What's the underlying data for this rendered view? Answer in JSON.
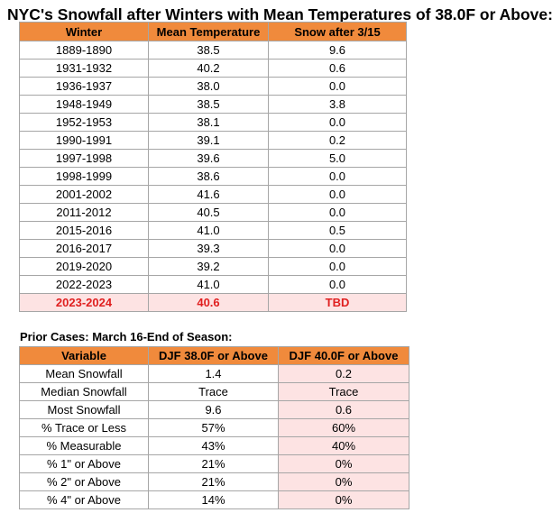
{
  "title": "NYC's Snowfall after Winters with Mean Temperatures of 38.0F or Above:",
  "winters_table": {
    "headers": [
      "Winter",
      "Mean Temperature",
      "Snow after 3/15"
    ],
    "rows": [
      [
        "1889-1890",
        "38.5",
        "9.6"
      ],
      [
        "1931-1932",
        "40.2",
        "0.6"
      ],
      [
        "1936-1937",
        "38.0",
        "0.0"
      ],
      [
        "1948-1949",
        "38.5",
        "3.8"
      ],
      [
        "1952-1953",
        "38.1",
        "0.0"
      ],
      [
        "1990-1991",
        "39.1",
        "0.2"
      ],
      [
        "1997-1998",
        "39.6",
        "5.0"
      ],
      [
        "1998-1999",
        "38.6",
        "0.0"
      ],
      [
        "2001-2002",
        "41.6",
        "0.0"
      ],
      [
        "2011-2012",
        "40.5",
        "0.0"
      ],
      [
        "2015-2016",
        "41.0",
        "0.5"
      ],
      [
        "2016-2017",
        "39.3",
        "0.0"
      ],
      [
        "2019-2020",
        "39.2",
        "0.0"
      ],
      [
        "2022-2023",
        "41.0",
        "0.0"
      ]
    ],
    "highlight_row": [
      "2023-2024",
      "40.6",
      "TBD"
    ]
  },
  "cases_subtitle": "Prior Cases: March 16-End of Season:",
  "cases_table": {
    "headers": [
      "Variable",
      "DJF 38.0F or Above",
      "DJF 40.0F or Above"
    ],
    "rows": [
      [
        "Mean Snowfall",
        "1.4",
        "0.2"
      ],
      [
        "Median Snowfall",
        "Trace",
        "Trace"
      ],
      [
        "Most Snowfall",
        "9.6",
        "0.6"
      ],
      [
        "% Trace or Less",
        "57%",
        "60%"
      ],
      [
        "% Measurable",
        "43%",
        "40%"
      ],
      [
        "% 1\" or Above",
        "21%",
        "0%"
      ],
      [
        "% 2\" or Above",
        "21%",
        "0%"
      ],
      [
        "% 4\" or Above",
        "14%",
        "0%"
      ]
    ]
  },
  "colors": {
    "header_orange": "#f08a3c",
    "highlight_pink": "#fde3e3",
    "highlight_text_red": "#e02020"
  }
}
